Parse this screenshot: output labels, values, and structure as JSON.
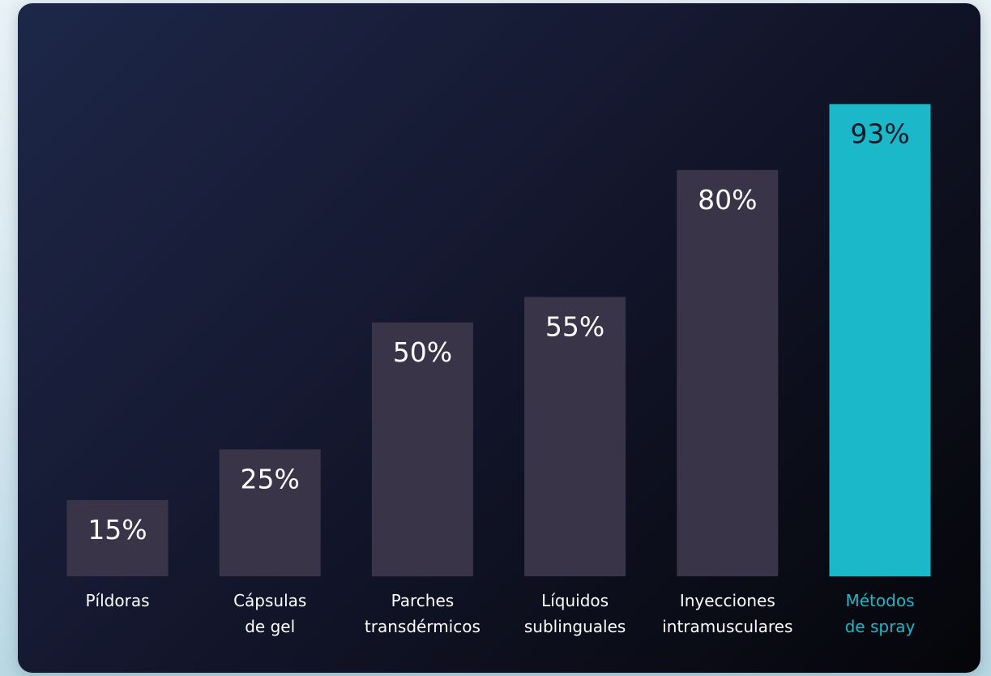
{
  "chart_data": {
    "type": "bar",
    "categories": [
      "Píldoras",
      "Cápsulas de gel",
      "Parches transdérmicos",
      "Líquidos sublinguales",
      "Inyecciones intramusculares",
      "Métodos de spray"
    ],
    "category_lines": [
      [
        "Píldoras"
      ],
      [
        "Cápsulas",
        "de gel"
      ],
      [
        "Parches",
        "transdérmicos"
      ],
      [
        "Líquidos",
        "sublinguales"
      ],
      [
        "Inyecciones",
        "intramusculares"
      ],
      [
        "Métodos",
        "de spray"
      ]
    ],
    "values": [
      15,
      25,
      50,
      55,
      80,
      93
    ],
    "value_labels": [
      "15%",
      "25%",
      "50%",
      "55%",
      "80%",
      "93%"
    ],
    "highlight_index": 5,
    "ylim": [
      0,
      100
    ],
    "grid": false,
    "title": "",
    "xlabel": "",
    "ylabel": ""
  },
  "colors": {
    "bar": "#3a3448",
    "highlight": "#1ab8c8",
    "value_text": "#ffffff",
    "value_text_highlight": "#0e1a2a",
    "label_text": "#ffffff",
    "label_text_highlight": "#1ab8c8"
  }
}
